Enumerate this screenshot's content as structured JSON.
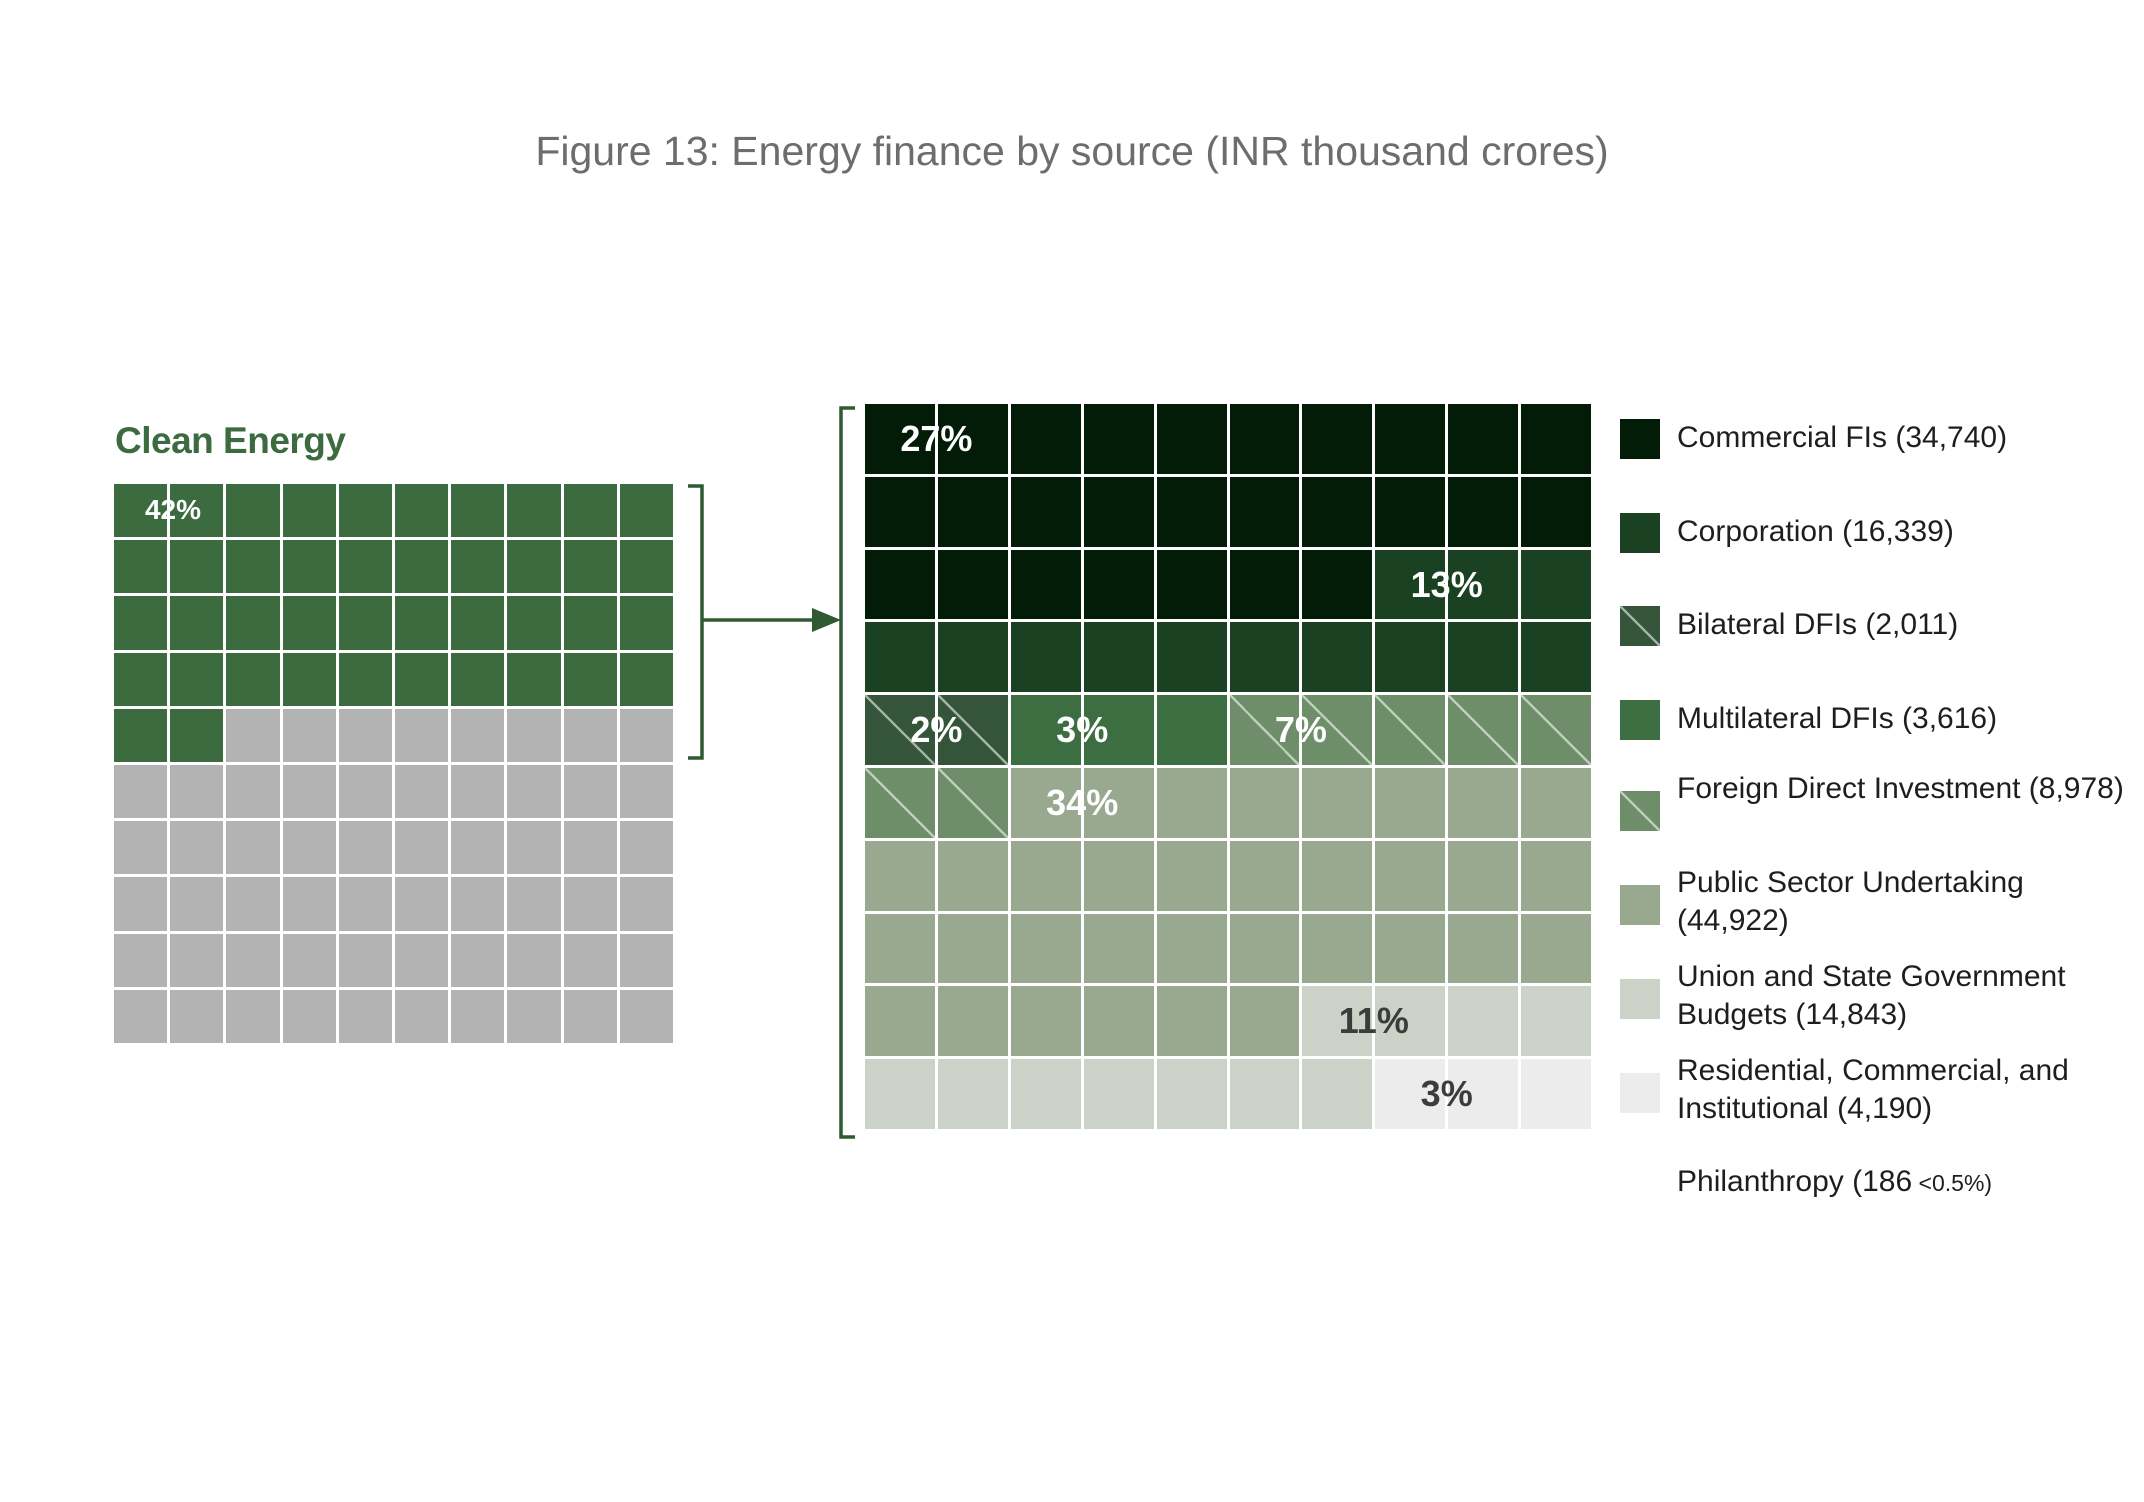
{
  "title": "Figure 13: Energy finance by source (INR thousand crores)",
  "colors": {
    "clean": "#3b6b3f",
    "other": "#b3b3b3",
    "connector": "#2f5a34"
  },
  "chart_data": [
    {
      "type": "waffle",
      "label": "Clean Energy",
      "grid": [
        10,
        10
      ],
      "value_pct": 42,
      "value_label": "42%",
      "filled_color": "#3b6b3f",
      "empty_color": "#b3b3b3"
    },
    {
      "type": "waffle",
      "grid": [
        10,
        10
      ],
      "unit": "INR thousand crores",
      "series": [
        {
          "name": "Commercial FIs",
          "value": 34740,
          "legend": "Commercial FIs (34,740)",
          "cells": 27,
          "pct_label": "27%",
          "color": "#021c07",
          "hatched": false,
          "label_cell": 0,
          "label_color": "#ffffff"
        },
        {
          "name": "Corporation",
          "value": 16339,
          "legend": "Corporation (16,339)",
          "cells": 13,
          "pct_label": "13%",
          "color": "#1a4222",
          "hatched": false,
          "label_cell": 27,
          "label_color": "#ffffff"
        },
        {
          "name": "Bilateral DFIs",
          "value": 2011,
          "legend": "Bilateral DFIs (2,011)",
          "cells": 2,
          "pct_label": "2%",
          "color": "#35553a",
          "hatched": true,
          "label_cell": 40,
          "label_color": "#ffffff"
        },
        {
          "name": "Multilateral DFIs",
          "value": 3616,
          "legend": "Multilateral DFIs (3,616)",
          "cells": 3,
          "pct_label": "3%",
          "color": "#3d6e41",
          "hatched": false,
          "label_cell": 42,
          "label_color": "#ffffff"
        },
        {
          "name": "Foreign Direct Investment",
          "value": 8978,
          "legend": "Foreign Direct Investment (8,978)",
          "cells": 7,
          "pct_label": "7%",
          "color": "#6e8e6a",
          "hatched": true,
          "label_cell": 45,
          "label_color": "#ffffff"
        },
        {
          "name": "Public Sector Undertaking",
          "value": 44922,
          "legend": "Public Sector Undertaking (44,922)",
          "cells": 34,
          "pct_label": "34%",
          "color": "#98a990",
          "hatched": false,
          "label_cell": 52,
          "label_color": "#ffffff"
        },
        {
          "name": "Union and State Government Budgets",
          "value": 14843,
          "legend": "Union and State Government Budgets (14,843)",
          "cells": 11,
          "pct_label": "11%",
          "color": "#ccd2c8",
          "hatched": false,
          "label_cell": 86,
          "label_color": "#3c3c3c"
        },
        {
          "name": "Residential, Commercial, and Institutional",
          "value": 4190,
          "legend": "Residential, Commercial, and Institutional (4,190)",
          "cells": 3,
          "pct_label": "3%",
          "color": "#ececec",
          "hatched": false,
          "label_cell": 97,
          "label_color": "#3c3c3c"
        },
        {
          "name": "Philanthropy",
          "value": 186,
          "legend": "Philanthropy (186",
          "legend_note": "<0.5%)",
          "cells": 0,
          "pct_label": "",
          "color": "#ffffff",
          "hatched": false
        }
      ]
    }
  ]
}
